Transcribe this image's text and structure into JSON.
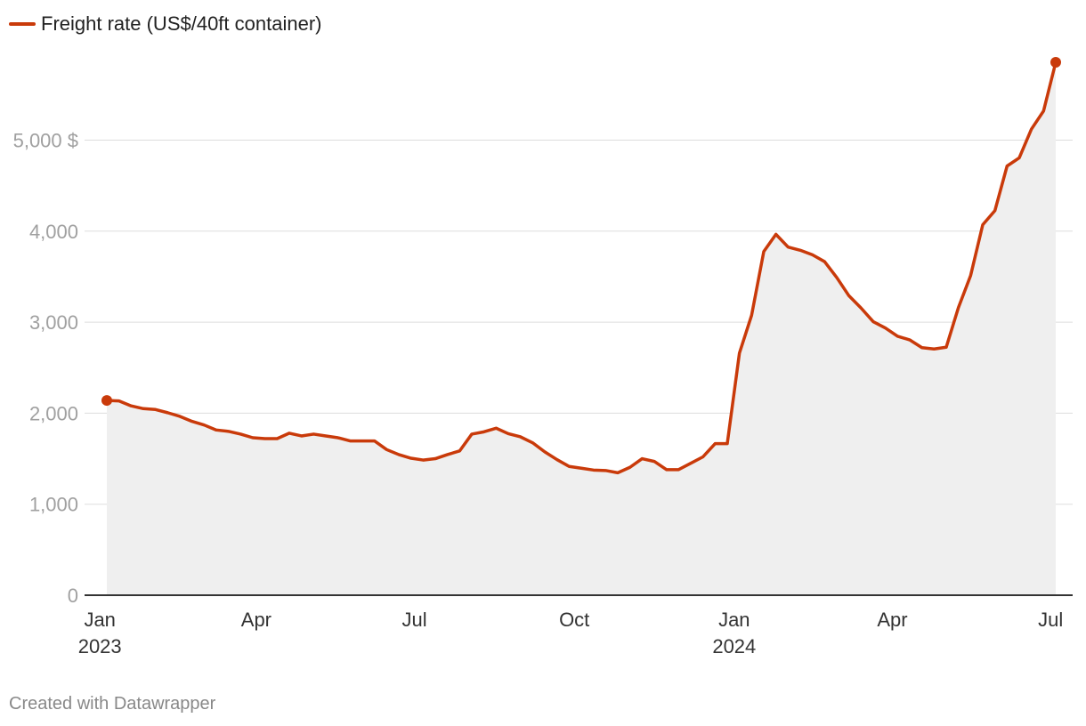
{
  "chart_data": {
    "type": "area",
    "series": [
      {
        "name": "Freight rate (US$/40ft container)",
        "color": "#c93a0a",
        "values": [
          [
            "2023-01-05",
            2140
          ],
          [
            "2023-01-12",
            2135
          ],
          [
            "2023-01-19",
            2080
          ],
          [
            "2023-01-26",
            2050
          ],
          [
            "2023-02-02",
            2040
          ],
          [
            "2023-02-09",
            2005
          ],
          [
            "2023-02-16",
            1965
          ],
          [
            "2023-02-23",
            1910
          ],
          [
            "2023-03-02",
            1870
          ],
          [
            "2023-03-09",
            1815
          ],
          [
            "2023-03-16",
            1800
          ],
          [
            "2023-03-23",
            1770
          ],
          [
            "2023-03-30",
            1730
          ],
          [
            "2023-04-06",
            1720
          ],
          [
            "2023-04-13",
            1720
          ],
          [
            "2023-04-20",
            1780
          ],
          [
            "2023-04-27",
            1750
          ],
          [
            "2023-05-04",
            1770
          ],
          [
            "2023-05-11",
            1750
          ],
          [
            "2023-05-18",
            1730
          ],
          [
            "2023-05-25",
            1695
          ],
          [
            "2023-06-01",
            1695
          ],
          [
            "2023-06-08",
            1695
          ],
          [
            "2023-06-15",
            1600
          ],
          [
            "2023-06-22",
            1545
          ],
          [
            "2023-06-29",
            1505
          ],
          [
            "2023-07-06",
            1485
          ],
          [
            "2023-07-13",
            1500
          ],
          [
            "2023-07-20",
            1545
          ],
          [
            "2023-07-27",
            1585
          ],
          [
            "2023-08-03",
            1770
          ],
          [
            "2023-08-10",
            1795
          ],
          [
            "2023-08-17",
            1835
          ],
          [
            "2023-08-24",
            1775
          ],
          [
            "2023-08-31",
            1740
          ],
          [
            "2023-09-07",
            1675
          ],
          [
            "2023-09-14",
            1575
          ],
          [
            "2023-09-21",
            1490
          ],
          [
            "2023-09-28",
            1415
          ],
          [
            "2023-10-05",
            1395
          ],
          [
            "2023-10-12",
            1375
          ],
          [
            "2023-10-19",
            1370
          ],
          [
            "2023-10-26",
            1345
          ],
          [
            "2023-11-02",
            1405
          ],
          [
            "2023-11-09",
            1500
          ],
          [
            "2023-11-16",
            1470
          ],
          [
            "2023-11-23",
            1380
          ],
          [
            "2023-11-30",
            1380
          ],
          [
            "2023-12-07",
            1450
          ],
          [
            "2023-12-14",
            1520
          ],
          [
            "2023-12-21",
            1665
          ],
          [
            "2023-12-28",
            1665
          ],
          [
            "2024-01-04",
            2660
          ],
          [
            "2024-01-11",
            3075
          ],
          [
            "2024-01-18",
            3775
          ],
          [
            "2024-01-25",
            3965
          ],
          [
            "2024-02-01",
            3825
          ],
          [
            "2024-02-08",
            3790
          ],
          [
            "2024-02-15",
            3740
          ],
          [
            "2024-02-22",
            3665
          ],
          [
            "2024-02-29",
            3490
          ],
          [
            "2024-03-07",
            3290
          ],
          [
            "2024-03-14",
            3155
          ],
          [
            "2024-03-21",
            3005
          ],
          [
            "2024-03-28",
            2935
          ],
          [
            "2024-04-04",
            2845
          ],
          [
            "2024-04-11",
            2805
          ],
          [
            "2024-04-18",
            2720
          ],
          [
            "2024-04-25",
            2705
          ],
          [
            "2024-05-02",
            2725
          ],
          [
            "2024-05-09",
            3160
          ],
          [
            "2024-05-16",
            3510
          ],
          [
            "2024-05-23",
            4070
          ],
          [
            "2024-05-30",
            4225
          ],
          [
            "2024-06-06",
            4715
          ],
          [
            "2024-06-13",
            4805
          ],
          [
            "2024-06-20",
            5120
          ],
          [
            "2024-06-27",
            5320
          ],
          [
            "2024-07-04",
            5855
          ]
        ]
      }
    ],
    "x_ticks": [
      {
        "label": "Jan",
        "sublabel": "2023",
        "date": "2023-01-01"
      },
      {
        "label": "Apr",
        "sublabel": "",
        "date": "2023-04-01"
      },
      {
        "label": "Jul",
        "sublabel": "",
        "date": "2023-07-01"
      },
      {
        "label": "Oct",
        "sublabel": "",
        "date": "2023-10-01"
      },
      {
        "label": "Jan",
        "sublabel": "2024",
        "date": "2024-01-01"
      },
      {
        "label": "Apr",
        "sublabel": "",
        "date": "2024-04-01"
      },
      {
        "label": "Jul",
        "sublabel": "",
        "date": "2024-07-01"
      }
    ],
    "y_ticks": [
      {
        "value": 0,
        "label": "0"
      },
      {
        "value": 1000,
        "label": "1,000"
      },
      {
        "value": 2000,
        "label": "2,000"
      },
      {
        "value": 3000,
        "label": "3,000"
      },
      {
        "value": 4000,
        "label": "4,000"
      },
      {
        "value": 5000,
        "label": "5,000 $"
      }
    ],
    "ylim": [
      0,
      5855
    ],
    "xlim": [
      "2023-01-05",
      "2024-07-04"
    ],
    "grid": "horizontal",
    "legend": "top-left",
    "area_fill": "#efefef"
  },
  "credit": "Created with Datawrapper"
}
